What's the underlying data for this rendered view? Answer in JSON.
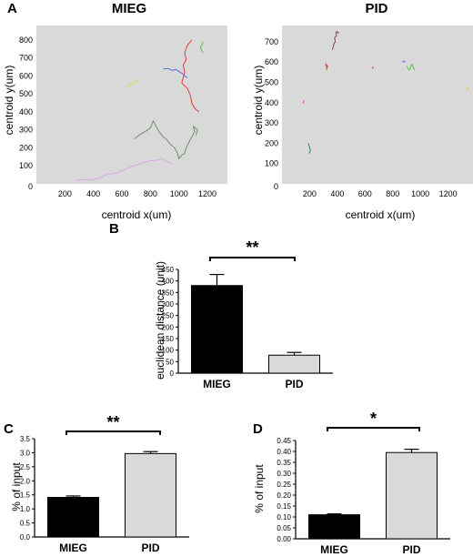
{
  "panels": {
    "a": "A",
    "b": "B",
    "c": "C",
    "d": "D"
  },
  "chart_data": [
    {
      "id": "A1",
      "type": "scatter",
      "title": "MIEG",
      "xlabel": "centroid x(um)",
      "ylabel": "centroid y(um)",
      "xlim": [
        0,
        1340
      ],
      "ylim": [
        0,
        880
      ],
      "xticks": [
        200,
        400,
        600,
        800,
        1000,
        1200
      ],
      "yticks": [
        100,
        200,
        300,
        400,
        500,
        600,
        700,
        800
      ],
      "origin_label": "0",
      "background": "#d9d9d9",
      "series": [
        {
          "color": "#e8383b",
          "points": [
            [
              1090,
              800
            ],
            [
              1060,
              770
            ],
            [
              1040,
              730
            ],
            [
              1050,
              690
            ],
            [
              1030,
              660
            ],
            [
              1040,
              620
            ],
            [
              1020,
              560
            ],
            [
              1060,
              530
            ],
            [
              1080,
              490
            ],
            [
              1090,
              450
            ],
            [
              1110,
              420
            ],
            [
              1140,
              400
            ]
          ]
        },
        {
          "color": "#5b6ee0",
          "points": [
            [
              890,
              640
            ],
            [
              930,
              640
            ],
            [
              950,
              630
            ],
            [
              980,
              635
            ],
            [
              1010,
              620
            ],
            [
              1030,
              610
            ],
            [
              1040,
              600
            ],
            [
              1060,
              590
            ]
          ]
        },
        {
          "color": "#55c34a",
          "points": [
            [
              1170,
              790
            ],
            [
              1160,
              770
            ],
            [
              1150,
              760
            ],
            [
              1160,
              740
            ],
            [
              1170,
              730
            ]
          ]
        },
        {
          "color": "#e0d64a",
          "points": [
            [
              640,
              540
            ],
            [
              660,
              555
            ],
            [
              690,
              560
            ],
            [
              700,
              570
            ],
            [
              720,
              580
            ]
          ]
        },
        {
          "color": "#6f8f6a",
          "points": [
            [
              690,
              250
            ],
            [
              720,
              270
            ],
            [
              760,
              290
            ],
            [
              800,
              310
            ],
            [
              820,
              350
            ],
            [
              840,
              320
            ],
            [
              860,
              290
            ],
            [
              890,
              260
            ],
            [
              910,
              250
            ],
            [
              940,
              220
            ],
            [
              970,
              200
            ],
            [
              990,
              170
            ],
            [
              1000,
              140
            ],
            [
              1020,
              160
            ],
            [
              1040,
              170
            ],
            [
              1050,
              200
            ],
            [
              1070,
              230
            ],
            [
              1090,
              260
            ],
            [
              1110,
              290
            ],
            [
              1100,
              320
            ],
            [
              1130,
              300
            ],
            [
              1120,
              270
            ]
          ]
        },
        {
          "color": "#d9a6e8",
          "points": [
            [
              280,
              20
            ],
            [
              330,
              25
            ],
            [
              380,
              20
            ],
            [
              430,
              30
            ],
            [
              490,
              50
            ],
            [
              560,
              60
            ],
            [
              620,
              80
            ],
            [
              680,
              100
            ],
            [
              720,
              110
            ],
            [
              760,
              120
            ],
            [
              800,
              130
            ],
            [
              840,
              130
            ],
            [
              880,
              140
            ],
            [
              920,
              120
            ],
            [
              960,
              110
            ]
          ]
        }
      ]
    },
    {
      "id": "A2",
      "type": "scatter",
      "title": "PID",
      "xlabel": "centroid x(um)",
      "ylabel": "centroid y(um)",
      "xlim": [
        0,
        1380
      ],
      "ylim": [
        0,
        780
      ],
      "xticks": [
        200,
        400,
        600,
        800,
        1000,
        1200
      ],
      "yticks": [
        100,
        200,
        300,
        400,
        500,
        600,
        700
      ],
      "origin_label": "0",
      "background": "#d9d9d9",
      "series": [
        {
          "color": "#7a4a3a",
          "points": [
            [
              365,
              660
            ],
            [
              375,
              690
            ],
            [
              385,
              700
            ],
            [
              380,
              720
            ],
            [
              395,
              730
            ],
            [
              390,
              745
            ],
            [
              400,
              750
            ],
            [
              410,
              740
            ]
          ]
        },
        {
          "color": "#e8383b",
          "points": [
            [
              320,
              560
            ],
            [
              330,
              580
            ],
            [
              315,
              590
            ],
            [
              325,
              570
            ]
          ]
        },
        {
          "color": "#e86b6b",
          "points": [
            [
              650,
              570
            ],
            [
              660,
              575
            ],
            [
              655,
              565
            ]
          ]
        },
        {
          "color": "#5b6ee0",
          "points": [
            [
              870,
              600
            ],
            [
              880,
              605
            ],
            [
              890,
              598
            ]
          ]
        },
        {
          "color": "#55c34a",
          "points": [
            [
              900,
              580
            ],
            [
              920,
              560
            ],
            [
              940,
              590
            ],
            [
              950,
              570
            ],
            [
              960,
              560
            ]
          ]
        },
        {
          "color": "#e0d64a",
          "points": [
            [
              1340,
              460
            ],
            [
              1345,
              480
            ],
            [
              1350,
              470
            ]
          ]
        },
        {
          "color": "#e860e0",
          "points": [
            [
              150,
              400
            ],
            [
              160,
              410
            ],
            [
              155,
              395
            ]
          ]
        },
        {
          "color": "#2e8a3a",
          "points": [
            [
              190,
              200
            ],
            [
              200,
              180
            ],
            [
              205,
              160
            ],
            [
              195,
              150
            ]
          ]
        }
      ]
    },
    {
      "id": "B",
      "type": "bar",
      "categories": [
        "MIEG",
        "PID"
      ],
      "values": [
        380,
        78
      ],
      "errors": [
        48,
        12
      ],
      "colors": [
        "#000000",
        "#d9d9d9"
      ],
      "ylabel": "euclidean distance (unit)",
      "ylim": [
        0,
        450
      ],
      "yticks": [
        0,
        50,
        100,
        150,
        200,
        250,
        300,
        350,
        400,
        450
      ],
      "annotation": "**"
    },
    {
      "id": "C",
      "type": "bar",
      "categories": [
        "MIEG",
        "PID"
      ],
      "values": [
        1.41,
        2.97
      ],
      "errors": [
        0.05,
        0.07
      ],
      "colors": [
        "#000000",
        "#d9d9d9"
      ],
      "ylabel": "% of input",
      "ylim": [
        0,
        3.5
      ],
      "yticks": [
        "0.0",
        "0.5",
        "1.0",
        "1.5",
        "2.0",
        "2.5",
        "3.0",
        "3.5"
      ],
      "annotation": "**"
    },
    {
      "id": "D",
      "type": "bar",
      "categories": [
        "MIEG",
        "PID"
      ],
      "values": [
        0.11,
        0.395
      ],
      "errors": [
        0.004,
        0.015
      ],
      "colors": [
        "#000000",
        "#d9d9d9"
      ],
      "ylabel": "% of input",
      "ylim": [
        0,
        0.45
      ],
      "yticks": [
        "0.00",
        "0.05",
        "0.10",
        "0.15",
        "0.20",
        "0.25",
        "0.30",
        "0.35",
        "0.40",
        "0.45"
      ],
      "annotation": "*"
    }
  ]
}
